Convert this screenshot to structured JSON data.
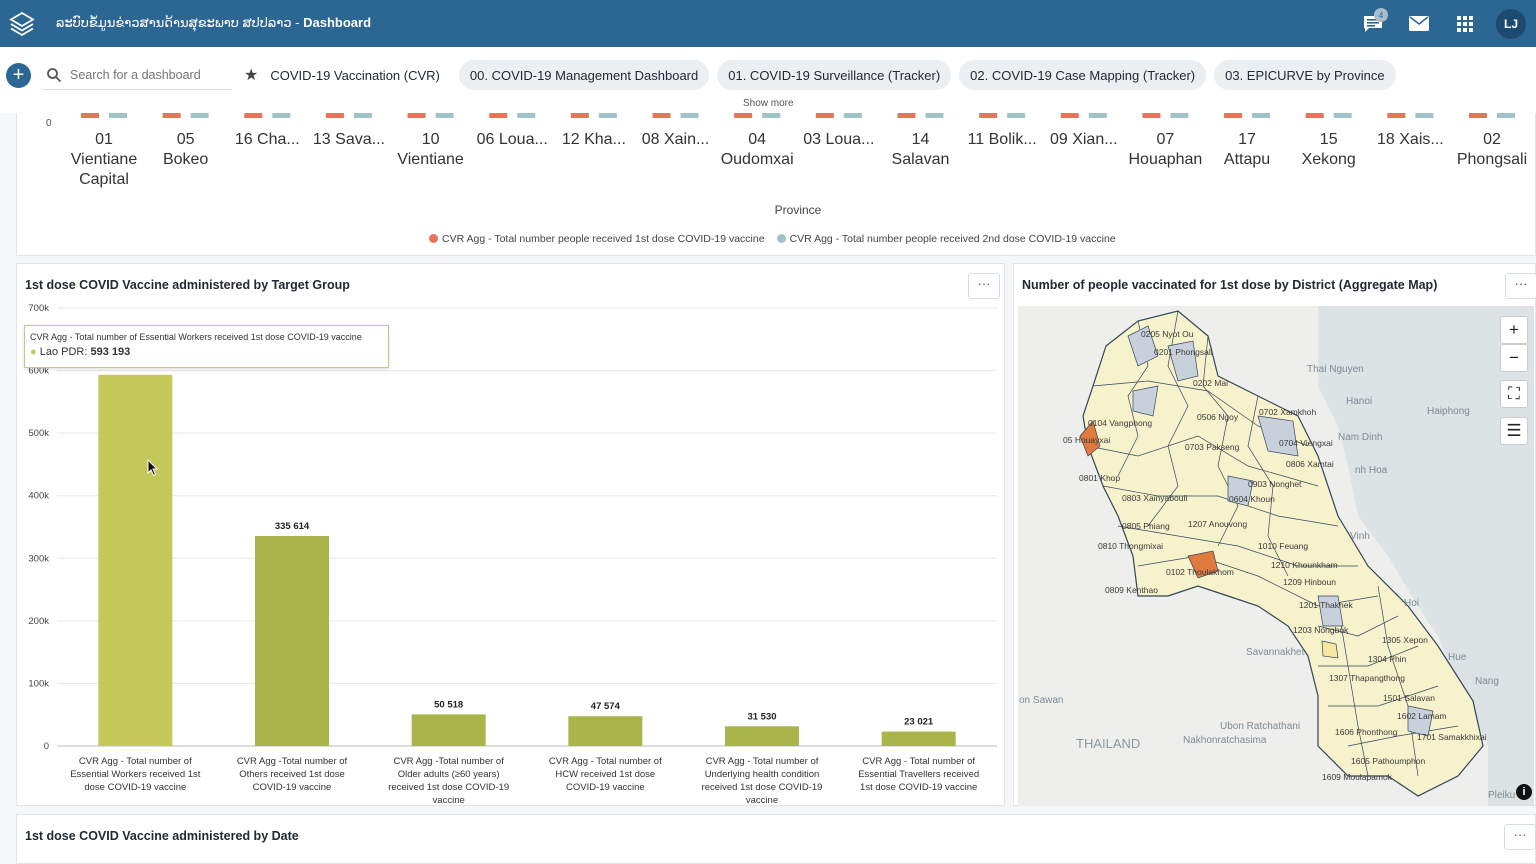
{
  "header": {
    "app_name": "ລະບົບຂໍ້ມູນຂ່າວສານດ້ານສຸຂະພາບ ສປປລາວ",
    "title_sep": " - ",
    "page_name": "Dashboard",
    "notification_count": "4",
    "user_initials": "LJ"
  },
  "dashbar": {
    "search_placeholder": "Search for a dashboard",
    "chips": [
      "COVID-19 Vaccination (CVR)",
      "00. COVID-19 Management Dashboard",
      "01. COVID-19 Surveillance (Tracker)",
      "02. COVID-19 Case Mapping (Tracker)",
      "03. EPICURVE by Province"
    ],
    "show_more": "Show more"
  },
  "top_chart": {
    "y_zero": "0",
    "xlabel": "Province",
    "provinces": [
      [
        "01",
        "Vientiane",
        "Capital"
      ],
      [
        "05",
        "Bokeo"
      ],
      [
        "16 Cha..."
      ],
      [
        "13 Sava..."
      ],
      [
        "10",
        "Vientiane"
      ],
      [
        "06 Loua..."
      ],
      [
        "12 Kha..."
      ],
      [
        "08 Xain..."
      ],
      [
        "04",
        "Oudomxai"
      ],
      [
        "03 Loua..."
      ],
      [
        "14",
        "Salavan"
      ],
      [
        "11 Bolik..."
      ],
      [
        "09 Xian..."
      ],
      [
        "07",
        "Houaphan"
      ],
      [
        "17",
        "Attapu"
      ],
      [
        "15",
        "Xekong"
      ],
      [
        "18 Xais..."
      ],
      [
        "02",
        "Phongsali"
      ]
    ],
    "legend": [
      {
        "label": "CVR Agg - Total number people received 1st dose COVID-19 vaccine",
        "color": "#e8745a"
      },
      {
        "label": "CVR Agg - Total number people received 2nd dose COVID-19 vaccine",
        "color": "#9fc3c7"
      }
    ]
  },
  "target_group_card": {
    "title": "1st dose COVID Vaccine administered by Target Group",
    "tooltip_series": "CVR Agg - Total number of Essential Workers received 1st dose COVID-19 vaccine",
    "tooltip_org": "Lao PDR:",
    "tooltip_value": "593 193"
  },
  "chart_data": {
    "type": "bar",
    "title": "1st dose COVID Vaccine administered by Target Group",
    "ylim": [
      0,
      700000
    ],
    "yticks": [
      "0",
      "100k",
      "200k",
      "300k",
      "400k",
      "500k",
      "600k",
      "700k"
    ],
    "categories": [
      [
        "CVR Agg - Total number of",
        "Essential Workers received 1st",
        "dose COVID-19 vaccine"
      ],
      [
        "CVR Agg -Total number of",
        "Others received 1st dose",
        "COVID-19 vaccine"
      ],
      [
        "CVR Agg -Total number of",
        "Older adults (≥60 years)",
        "received 1st dose COVID-19",
        "vaccine"
      ],
      [
        "CVR Agg - Total number of",
        "HCW received 1st dose",
        "COVID-19 vaccine"
      ],
      [
        "CVR Agg - Total number of",
        "Underlying health condition",
        "received 1st dose COVID-19",
        "vaccine"
      ],
      [
        "CVR Agg - Total number of",
        "Essential Travellers received",
        "1st dose COVID-19 vaccine"
      ]
    ],
    "values": [
      593193,
      335614,
      50518,
      47574,
      31530,
      23021
    ],
    "value_labels": [
      "593 193",
      "335 614",
      "50 518",
      "47 574",
      "31 530",
      "23 021"
    ],
    "colors": [
      "#c4c75a",
      "#a9b54a"
    ]
  },
  "map_card": {
    "title": "Number of people vaccinated for 1st dose by District (Aggregate Map)",
    "zoom_in": "+",
    "zoom_out": "−",
    "fullscreen": "⛶",
    "layers": "☰",
    "info": "i",
    "place_labels": [
      {
        "text": "Thai Nguyen",
        "l": 1306,
        "t": 363
      },
      {
        "text": "Hanoi",
        "l": 1345,
        "t": 395
      },
      {
        "text": "Haiphong",
        "l": 1426,
        "t": 405
      },
      {
        "text": "Nam Dinh",
        "l": 1337,
        "t": 431
      },
      {
        "text": "nh Hoa",
        "l": 1354,
        "t": 464
      },
      {
        "text": "Vinh",
        "l": 1349,
        "t": 530
      },
      {
        "text": "Hoi",
        "l": 1403,
        "t": 597
      },
      {
        "text": "Savannakhet",
        "l": 1245,
        "t": 646
      },
      {
        "text": "Hue",
        "l": 1447,
        "t": 651
      },
      {
        "text": "Nang",
        "l": 1474,
        "t": 675
      },
      {
        "text": "on Sawan",
        "l": 1018,
        "t": 694
      },
      {
        "text": "Ubon Ratchathani",
        "l": 1219,
        "t": 720
      },
      {
        "text": "Nakhonratchasima",
        "l": 1182,
        "t": 734
      },
      {
        "text": "Pleiku",
        "l": 1487,
        "t": 789
      }
    ],
    "country_label": "THAILAND",
    "district_labels": [
      {
        "text": "0205 Nyot Ou",
        "l": 1140,
        "t": 328
      },
      {
        "text": "0201 Phongsali",
        "l": 1153,
        "t": 346
      },
      {
        "text": "0202 Mai",
        "l": 1192,
        "t": 377
      },
      {
        "text": "0104 Vangphong",
        "l": 1087,
        "t": 417
      },
      {
        "text": "0506 Ngoy",
        "l": 1196,
        "t": 411
      },
      {
        "text": "0702 Xamkhoh",
        "l": 1258,
        "t": 406
      },
      {
        "text": "05 Houayxai",
        "l": 1062,
        "t": 434
      },
      {
        "text": "0703 Pakseng",
        "l": 1184,
        "t": 441
      },
      {
        "text": "0704 Viengxai",
        "l": 1278,
        "t": 437
      },
      {
        "text": "0806 Xamtai",
        "l": 1285,
        "t": 458
      },
      {
        "text": "0801 Khop",
        "l": 1078,
        "t": 472
      },
      {
        "text": "0903 Nonghet",
        "l": 1247,
        "t": 478
      },
      {
        "text": "0604 Khoun",
        "l": 1228,
        "t": 493
      },
      {
        "text": "0803 Xainyabouli",
        "l": 1121,
        "t": 492
      },
      {
        "text": "0805 Phiang",
        "l": 1121,
        "t": 520
      },
      {
        "text": "1207 Anouvong",
        "l": 1187,
        "t": 518
      },
      {
        "text": "0810 Thongmixai",
        "l": 1097,
        "t": 540
      },
      {
        "text": "1010 Feuang",
        "l": 1257,
        "t": 540
      },
      {
        "text": "1210 Khounkham",
        "l": 1270,
        "t": 559
      },
      {
        "text": "0102 Thoulakhom",
        "l": 1165,
        "t": 566
      },
      {
        "text": "1209 Hinboun",
        "l": 1282,
        "t": 576
      },
      {
        "text": "0809 Kenthao",
        "l": 1104,
        "t": 584
      },
      {
        "text": "1201 Thakhek",
        "l": 1298,
        "t": 599
      },
      {
        "text": "1203 Nongbok",
        "l": 1292,
        "t": 624
      },
      {
        "text": "1305 Xepon",
        "l": 1381,
        "t": 634
      },
      {
        "text": "1304 Phin",
        "l": 1367,
        "t": 653
      },
      {
        "text": "1307 Thapangthong",
        "l": 1328,
        "t": 672
      },
      {
        "text": "1501 Salavan",
        "l": 1382,
        "t": 692
      },
      {
        "text": "1602 Lamam",
        "l": 1396,
        "t": 710
      },
      {
        "text": "1606 Phonthong",
        "l": 1334,
        "t": 726
      },
      {
        "text": "1701 Samakkhixai",
        "l": 1416,
        "t": 731
      },
      {
        "text": "1605 Pathoumphon",
        "l": 1350,
        "t": 755
      },
      {
        "text": "1609 Moulapamok",
        "l": 1321,
        "t": 771
      }
    ]
  },
  "date_card": {
    "title": "1st dose COVID Vaccine administered by Date"
  },
  "menu_label": "···"
}
